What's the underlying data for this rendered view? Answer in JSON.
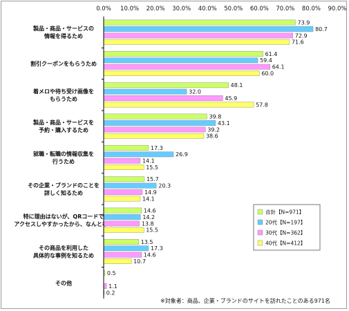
{
  "chart_data": {
    "type": "bar",
    "orientation": "horizontal",
    "xlim": [
      0,
      90
    ],
    "xticks": [
      "0.0%",
      "10.0%",
      "20.0%",
      "30.0%",
      "40.0%",
      "50.0%",
      "60.0%",
      "70.0%",
      "80.0%",
      "90.0%"
    ],
    "grid": false,
    "legend_position": "bottom-right",
    "categories": [
      [
        "製品・商品・サービスの",
        "情報を得るため"
      ],
      [
        "割引クーポンをもらうため"
      ],
      [
        "着メロや待ち受け画像を",
        "もらうため"
      ],
      [
        "製品・商品・サービスを",
        "予約・購入するため"
      ],
      [
        "就職・転職の情報収集を",
        "行うため"
      ],
      [
        "その企業・ブランドのことを",
        "詳しく知るため"
      ],
      [
        "特に理由はないが、QRコードで",
        "アクセスしやすかったから、なんとなく"
      ],
      [
        "その商品を利用した",
        "具体的な事例を知るため"
      ],
      [
        "その他"
      ]
    ],
    "series": [
      {
        "name": "合計【N=971】",
        "color": "#ccff66",
        "values": [
          73.9,
          61.4,
          48.1,
          39.8,
          17.3,
          15.7,
          14.6,
          13.5,
          0.5
        ]
      },
      {
        "name": "20代【N=197】",
        "color": "#66ccff",
        "values": [
          80.7,
          59.4,
          32.0,
          43.1,
          26.9,
          20.3,
          14.2,
          17.3,
          0.0
        ]
      },
      {
        "name": "30代【N=362】",
        "color": "#ff99ff",
        "values": [
          72.9,
          64.1,
          45.9,
          39.2,
          14.1,
          14.9,
          13.8,
          14.6,
          1.1
        ]
      },
      {
        "name": "40代【N=412】",
        "color": "#ffff66",
        "values": [
          71.6,
          60.0,
          57.8,
          38.6,
          15.5,
          14.1,
          15.5,
          10.7,
          0.2
        ]
      }
    ],
    "value_labels": [
      [
        "73.9",
        "80.7",
        "72.9",
        "71.6"
      ],
      [
        "61.4",
        "59.4",
        "64.1",
        "60.0"
      ],
      [
        "48.1",
        "32.0",
        "45.9",
        "57.8"
      ],
      [
        "39.8",
        "43.1",
        "39.2",
        "38.6"
      ],
      [
        "17.3",
        "26.9",
        "14.1",
        "15.5"
      ],
      [
        "15.7",
        "20.3",
        "14.9",
        "14.1"
      ],
      [
        "14.6",
        "14.2",
        "13.8",
        "15.5"
      ],
      [
        "13.5",
        "17.3",
        "14.6",
        "10.7"
      ],
      [
        "0.5",
        "",
        "1.1",
        "0.2"
      ]
    ],
    "annotation": "※対象者：商品、企業・ブランドのサイトを訪れたことのある971名"
  }
}
